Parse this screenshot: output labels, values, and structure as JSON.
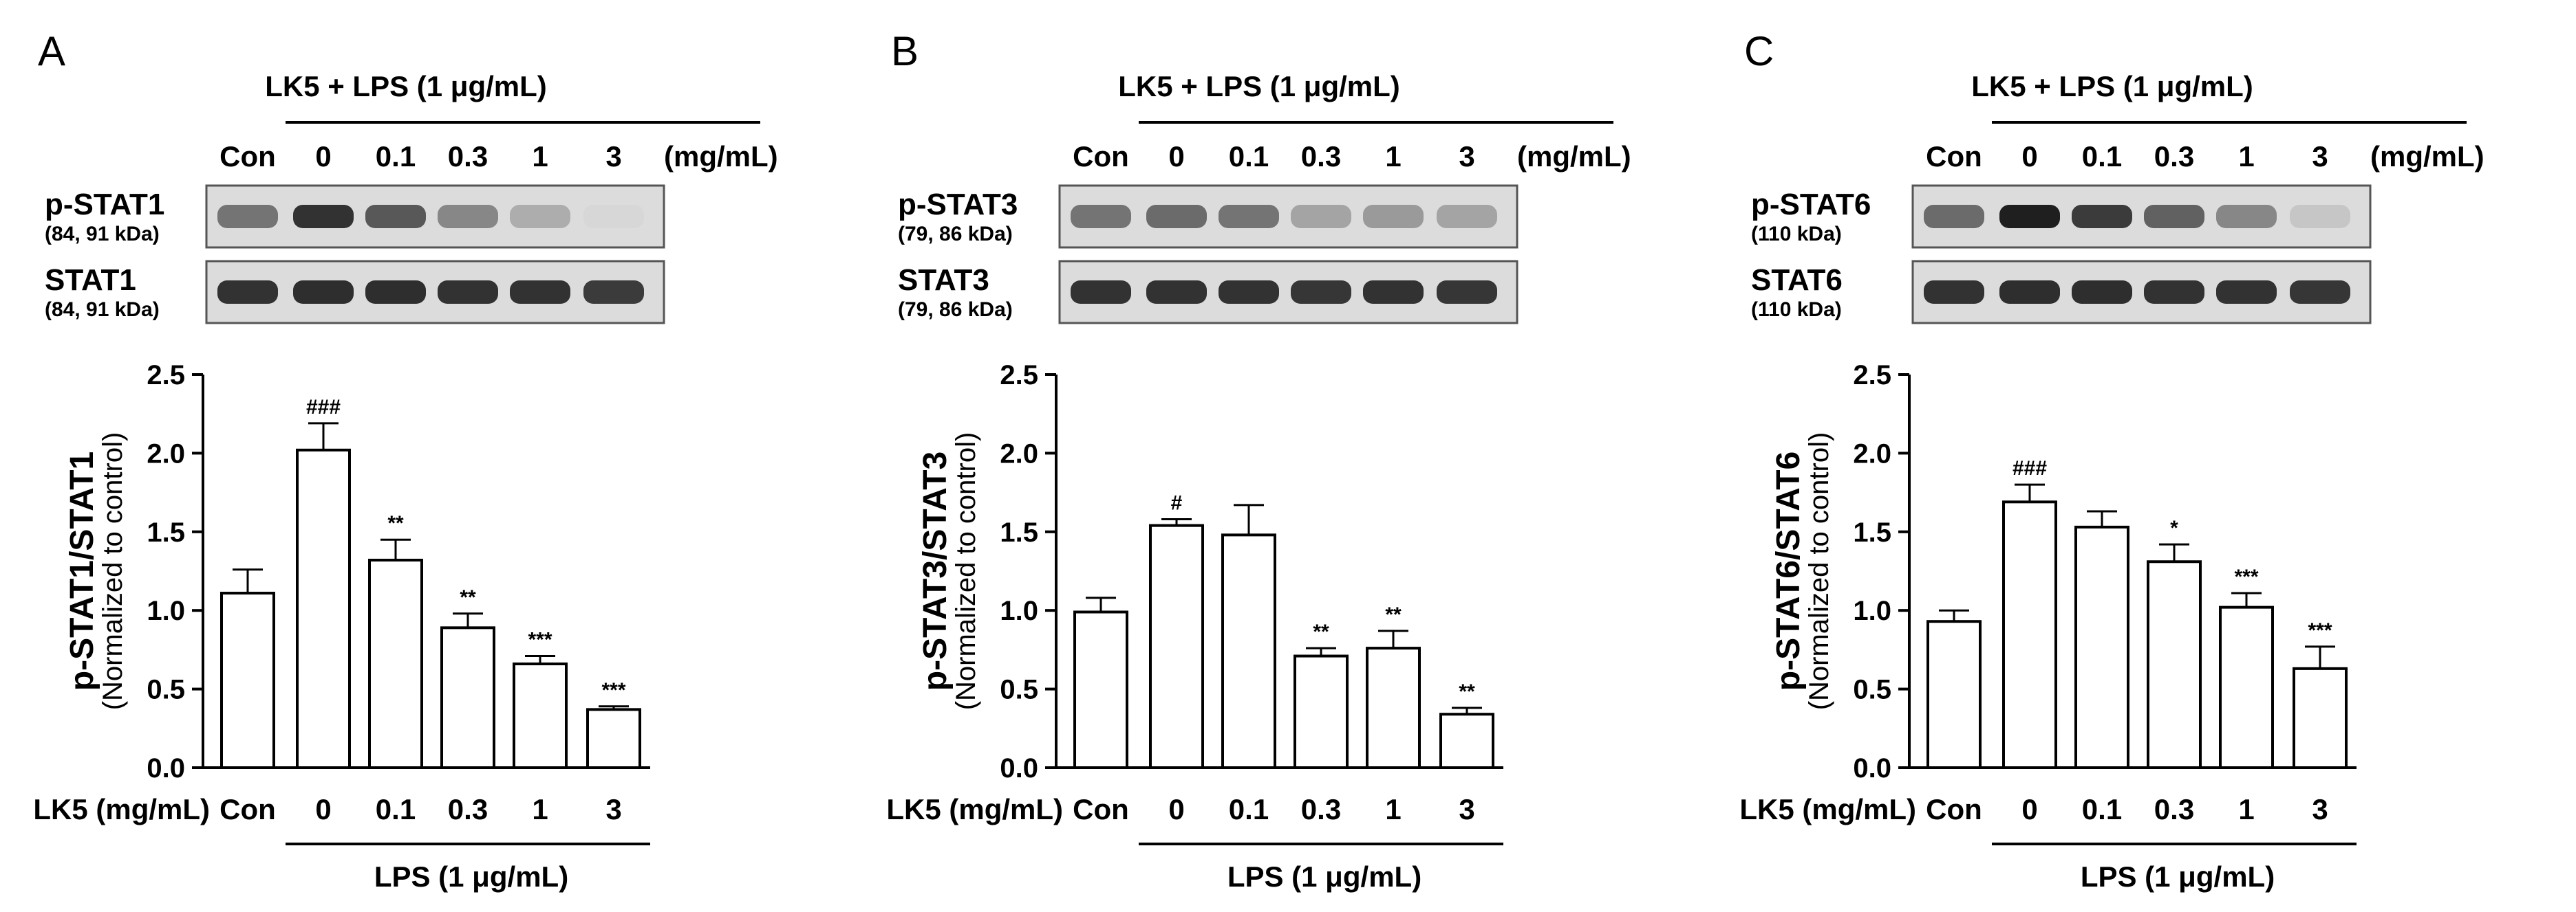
{
  "panels": [
    {
      "letter": "A",
      "treatment_label": "LK5 + LPS (1 μg/mL)",
      "lanes": [
        "Con",
        "0",
        "0.1",
        "0.3",
        "1",
        "3"
      ],
      "unit": "(mg/mL)",
      "blots": [
        {
          "name": "p-STAT1",
          "kda": "(84, 91 kDa)"
        },
        {
          "name": "STAT1",
          "kda": "(84, 91 kDa)"
        }
      ]
    },
    {
      "letter": "B",
      "treatment_label": "LK5 + LPS (1 μg/mL)",
      "lanes": [
        "Con",
        "0",
        "0.1",
        "0.3",
        "1",
        "3"
      ],
      "unit": "(mg/mL)",
      "blots": [
        {
          "name": "p-STAT3",
          "kda": "(79, 86 kDa)"
        },
        {
          "name": "STAT3",
          "kda": "(79, 86 kDa)"
        }
      ]
    },
    {
      "letter": "C",
      "treatment_label": "LK5 + LPS (1 μg/mL)",
      "lanes": [
        "Con",
        "0",
        "0.1",
        "0.3",
        "1",
        "3"
      ],
      "unit": "(mg/mL)",
      "blots": [
        {
          "name": "p-STAT6",
          "kda": "(110 kDa)"
        },
        {
          "name": "STAT6",
          "kda": "(110 kDa)"
        }
      ]
    }
  ],
  "chart_data": [
    {
      "type": "bar",
      "categories": [
        "Con",
        "0",
        "0.1",
        "0.3",
        "1",
        "3"
      ],
      "values": [
        1.11,
        2.02,
        1.32,
        0.89,
        0.66,
        0.37
      ],
      "errors": [
        0.15,
        0.17,
        0.13,
        0.09,
        0.05,
        0.02
      ],
      "annotations": [
        "",
        "###",
        "**",
        "**",
        "***",
        "***"
      ],
      "ylabel": "p-STAT1/STAT1",
      "ylabel_sub": "(Normalized to control)",
      "xlabel": "LK5 (mg/mL)",
      "group_label": "LPS (1 μg/mL)",
      "ylim": [
        0,
        2.5
      ],
      "yticks": [
        "0.0",
        "0.5",
        "1.0",
        "1.5",
        "2.0",
        "2.5"
      ],
      "grid": false
    },
    {
      "type": "bar",
      "categories": [
        "Con",
        "0",
        "0.1",
        "0.3",
        "1",
        "3"
      ],
      "values": [
        0.99,
        1.54,
        1.48,
        0.71,
        0.76,
        0.34
      ],
      "errors": [
        0.09,
        0.04,
        0.19,
        0.05,
        0.11,
        0.04
      ],
      "annotations": [
        "",
        "#",
        "",
        "**",
        "**",
        "**"
      ],
      "ylabel": "p-STAT3/STAT3",
      "ylabel_sub": "(Normalized to control)",
      "xlabel": "LK5 (mg/mL)",
      "group_label": "LPS (1 μg/mL)",
      "ylim": [
        0,
        2.5
      ],
      "yticks": [
        "0.0",
        "0.5",
        "1.0",
        "1.5",
        "2.0",
        "2.5"
      ],
      "grid": false
    },
    {
      "type": "bar",
      "categories": [
        "Con",
        "0",
        "0.1",
        "0.3",
        "1",
        "3"
      ],
      "values": [
        0.93,
        1.69,
        1.53,
        1.31,
        1.02,
        0.63
      ],
      "errors": [
        0.07,
        0.11,
        0.1,
        0.11,
        0.09,
        0.14
      ],
      "annotations": [
        "",
        "###",
        "",
        "*",
        "***",
        "***"
      ],
      "ylabel": "p-STAT6/STAT6",
      "ylabel_sub": "(Normalized to control)",
      "xlabel": "LK5 (mg/mL)",
      "group_label": "LPS (1 μg/mL)",
      "ylim": [
        0,
        2.5
      ],
      "yticks": [
        "0.0",
        "0.5",
        "1.0",
        "1.5",
        "2.0",
        "2.5"
      ],
      "grid": false
    }
  ]
}
